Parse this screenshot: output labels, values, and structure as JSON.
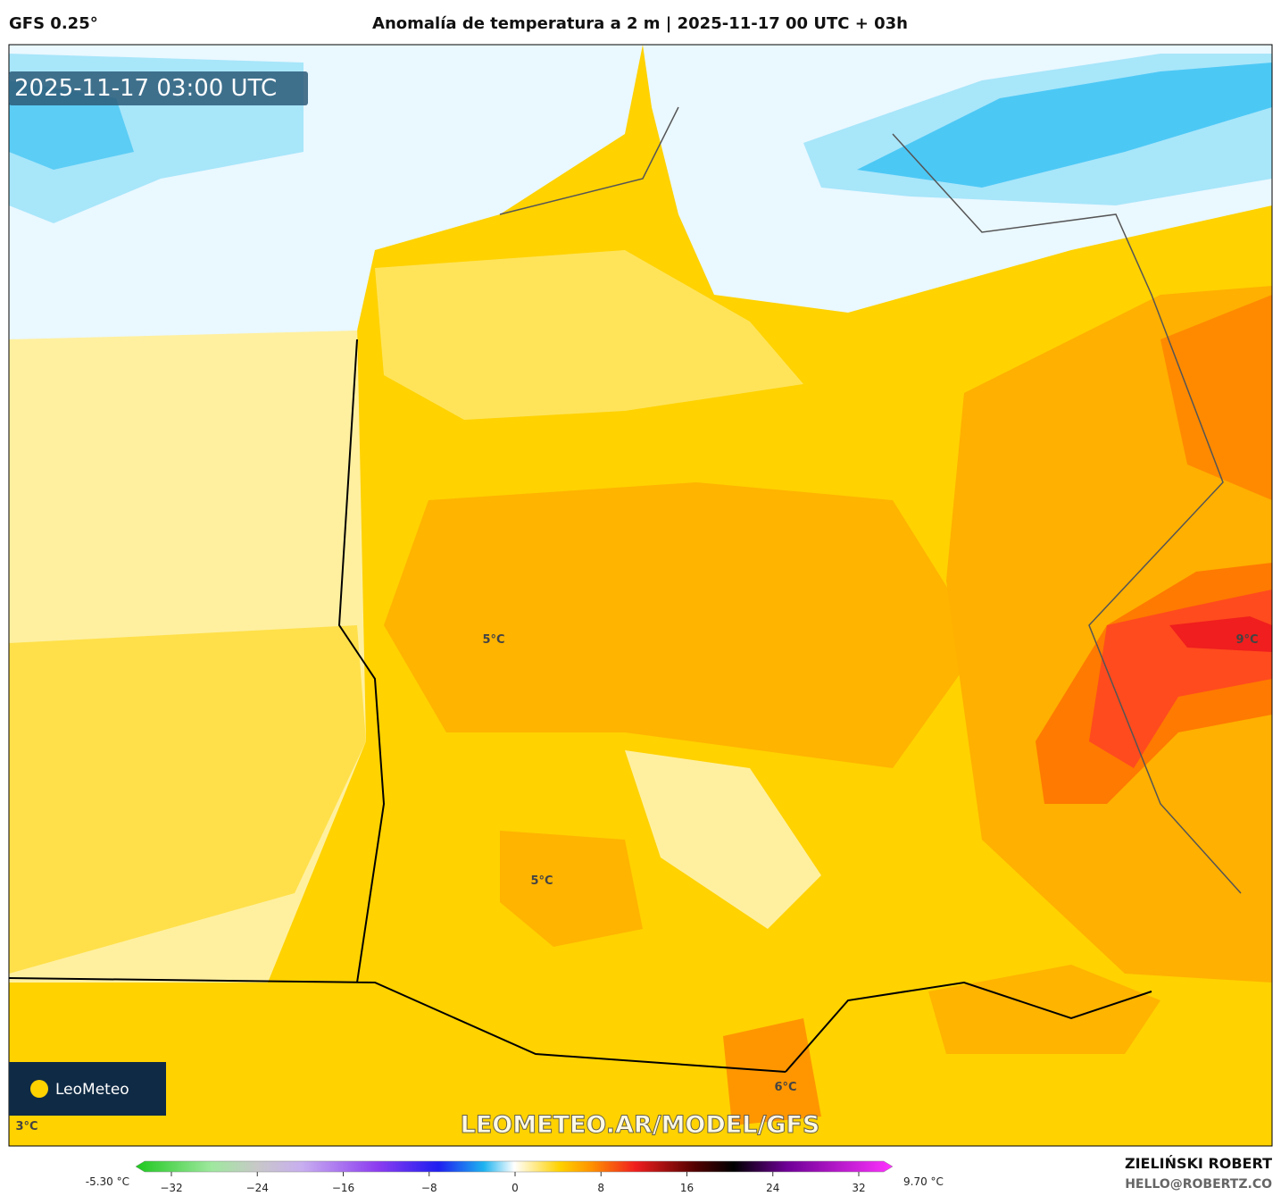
{
  "header": {
    "model": "GFS 0.25°",
    "title": "Anomalía de temperatura a 2 m | 2025-11-17 00 UTC + 03h"
  },
  "timestamp": "2025-11-17 03:00 UTC",
  "map_labels": [
    "5°C",
    "5°C",
    "9°C",
    "6°C",
    "3°C"
  ],
  "logo": "LeoMeteo",
  "watermark": "LEOMETEO.AR/MODEL/GFS",
  "colorbar": {
    "min_label": "-5.30 °C",
    "max_label": "9.70 °C",
    "range": [
      -32,
      32
    ],
    "ticks": [
      {
        "value": -32,
        "label": "−32"
      },
      {
        "value": -24,
        "label": "−24"
      },
      {
        "value": -16,
        "label": "−16"
      },
      {
        "value": -8,
        "label": "−8"
      },
      0,
      8,
      16,
      24,
      32
    ]
  },
  "credit": {
    "name": "ZIELIŃSKI ROBERT",
    "email": "HELLO@ROBERTZ.CO"
  }
}
